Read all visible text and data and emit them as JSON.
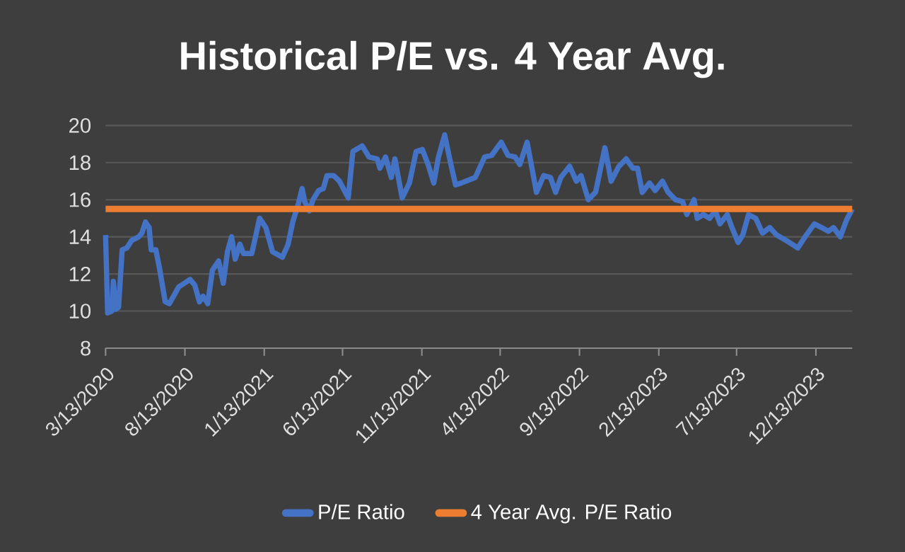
{
  "chart_data": {
    "type": "line",
    "title": "Historical P/E vs. 4 Year Avg.",
    "x": [
      "2020-03-13",
      "2020-03-17",
      "2020-03-25",
      "2020-03-28",
      "2020-04-02",
      "2020-04-07",
      "2020-04-14",
      "2020-04-23",
      "2020-05-02",
      "2020-05-16",
      "2020-05-22",
      "2020-05-29",
      "2020-06-05",
      "2020-06-09",
      "2020-06-18",
      "2020-06-25",
      "2020-07-06",
      "2020-07-14",
      "2020-08-01",
      "2020-08-23",
      "2020-09-01",
      "2020-09-10",
      "2020-09-17",
      "2020-09-26",
      "2020-10-05",
      "2020-10-17",
      "2020-10-26",
      "2020-11-03",
      "2020-11-11",
      "2020-11-18",
      "2020-11-27",
      "2020-12-04",
      "2020-12-20",
      "2021-01-04",
      "2021-01-16",
      "2021-01-29",
      "2021-02-17",
      "2021-02-28",
      "2021-03-09",
      "2021-03-20",
      "2021-03-27",
      "2021-04-01",
      "2021-04-10",
      "2021-04-17",
      "2021-04-28",
      "2021-05-07",
      "2021-05-14",
      "2021-05-27",
      "2021-06-07",
      "2021-06-24",
      "2021-07-03",
      "2021-07-21",
      "2021-08-03",
      "2021-08-19",
      "2021-08-24",
      "2021-09-04",
      "2021-09-15",
      "2021-09-22",
      "2021-10-06",
      "2021-10-20",
      "2021-11-02",
      "2021-11-14",
      "2021-11-25",
      "2021-12-06",
      "2021-12-15",
      "2021-12-27",
      "2022-01-08",
      "2022-01-17",
      "2022-01-28",
      "2022-02-06",
      "2022-02-24",
      "2022-03-14",
      "2022-03-28",
      "2022-04-15",
      "2022-04-28",
      "2022-05-12",
      "2022-05-21",
      "2022-06-04",
      "2022-06-22",
      "2022-07-06",
      "2022-07-19",
      "2022-07-29",
      "2022-08-08",
      "2022-08-25",
      "2022-09-07",
      "2022-09-16",
      "2022-09-30",
      "2022-10-14",
      "2022-11-01",
      "2022-11-13",
      "2022-11-28",
      "2022-12-12",
      "2022-12-25",
      "2023-01-03",
      "2023-01-12",
      "2023-01-26",
      "2023-02-06",
      "2023-02-20",
      "2023-03-03",
      "2023-03-17",
      "2023-03-31",
      "2023-04-08",
      "2023-04-22",
      "2023-04-28",
      "2023-05-10",
      "2023-05-22",
      "2023-06-02",
      "2023-06-11",
      "2023-06-25",
      "2023-07-04",
      "2023-07-16",
      "2023-07-25",
      "2023-08-05",
      "2023-08-19",
      "2023-09-01",
      "2023-09-15",
      "2023-09-28",
      "2023-10-17",
      "2023-11-08",
      "2023-11-22",
      "2023-12-10",
      "2023-12-24",
      "2024-01-06",
      "2024-01-16",
      "2024-01-29",
      "2024-02-10",
      "2024-02-21"
    ],
    "series": [
      {
        "name": "P/E Ratio",
        "color": "#4472c4",
        "values": [
          14.1,
          9.9,
          10.0,
          11.6,
          10.1,
          10.2,
          13.3,
          13.4,
          13.8,
          14.0,
          14.2,
          14.8,
          14.5,
          13.3,
          13.3,
          12.3,
          10.5,
          10.4,
          11.3,
          11.7,
          11.4,
          10.5,
          10.8,
          10.4,
          12.2,
          12.7,
          11.5,
          13.2,
          14.0,
          12.8,
          13.6,
          13.1,
          13.1,
          15.0,
          14.5,
          13.2,
          12.9,
          13.6,
          14.8,
          15.8,
          16.6,
          15.9,
          15.4,
          16.0,
          16.5,
          16.6,
          17.3,
          17.3,
          17.0,
          16.1,
          18.6,
          18.9,
          18.3,
          18.2,
          17.7,
          18.3,
          17.2,
          18.2,
          16.1,
          16.9,
          18.6,
          18.7,
          17.9,
          16.9,
          18.3,
          19.5,
          17.9,
          16.8,
          16.9,
          17.0,
          17.2,
          18.3,
          18.4,
          19.1,
          18.4,
          18.3,
          17.9,
          19.1,
          16.4,
          17.3,
          17.2,
          16.4,
          17.2,
          17.8,
          17.0,
          17.3,
          16.0,
          16.4,
          18.8,
          17.0,
          17.8,
          18.2,
          17.7,
          17.7,
          16.4,
          16.9,
          16.5,
          17.0,
          16.4,
          16.0,
          15.9,
          15.2,
          16.0,
          15.0,
          15.2,
          15.0,
          15.4,
          14.7,
          15.2,
          14.5,
          13.7,
          14.1,
          15.2,
          15.0,
          14.2,
          14.5,
          14.1,
          13.8,
          13.4,
          14.0,
          14.7,
          14.5,
          14.3,
          14.5,
          14.0,
          14.9,
          15.5
        ]
      },
      {
        "name": "4 Year Avg. P/E Ratio",
        "color": "#ed7d31",
        "x": [
          "2020-03-13",
          "2024-02-21"
        ],
        "values": [
          15.5,
          15.5
        ]
      }
    ],
    "xlim": [
      "2020-03-13",
      "2024-02-21"
    ],
    "xticks": [
      {
        "value": "2020-03-13",
        "label": "3/13/2020"
      },
      {
        "value": "2020-08-13",
        "label": "8/13/2020"
      },
      {
        "value": "2021-01-13",
        "label": "1/13/2021"
      },
      {
        "value": "2021-06-13",
        "label": "6/13/2021"
      },
      {
        "value": "2021-11-13",
        "label": "11/13/2021"
      },
      {
        "value": "2022-04-13",
        "label": "4/13/2022"
      },
      {
        "value": "2022-09-13",
        "label": "9/13/2022"
      },
      {
        "value": "2023-02-13",
        "label": "2/13/2023"
      },
      {
        "value": "2023-07-13",
        "label": "7/13/2023"
      },
      {
        "value": "2023-12-13",
        "label": "12/13/2023"
      }
    ],
    "ylim": [
      8,
      20
    ],
    "yticks": [
      8,
      10,
      12,
      14,
      16,
      18,
      20
    ],
    "grid": "y",
    "legend": "bottom",
    "marker": "none",
    "line_style": "solid"
  }
}
